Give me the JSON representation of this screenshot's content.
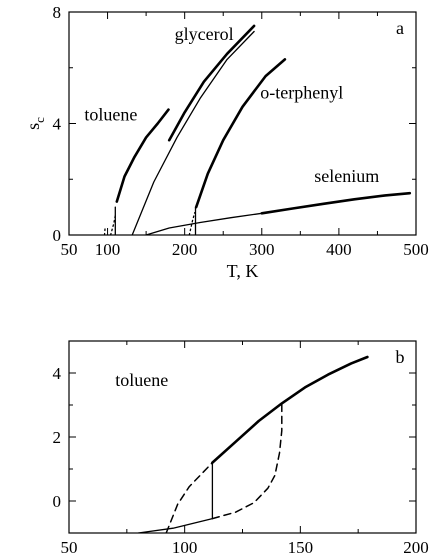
{
  "chart_data": [
    {
      "type": "line",
      "panel_tag": "a",
      "xlabel": "T, K",
      "ylabel": "s",
      "ylabel_sub": "c",
      "xlim": [
        50,
        500
      ],
      "ylim": [
        0,
        8
      ],
      "xticks": [
        50,
        100,
        150,
        200,
        250,
        300,
        350,
        400,
        450,
        500
      ],
      "yticks": [
        0,
        2,
        4,
        6,
        8
      ],
      "xtick_labels": [
        "50",
        "100",
        "200",
        "300",
        "400",
        "500"
      ],
      "ytick_labels": [
        "0",
        "4",
        "8"
      ],
      "xtick_label_values": [
        50,
        100,
        200,
        300,
        400,
        500
      ],
      "ytick_label_values": [
        0,
        4,
        8
      ],
      "grid": false,
      "series": [
        {
          "label_ref": "toluene",
          "style": "thick",
          "points": [
            [
              112,
              1.2
            ],
            [
              122,
              2.1
            ],
            [
              135,
              2.8
            ],
            [
              150,
              3.5
            ],
            [
              165,
              4.0
            ],
            [
              179,
              4.5
            ]
          ]
        },
        {
          "label_ref": "toluene",
          "style": "thin",
          "points": [
            [
              110,
              0.0
            ],
            [
              110,
              1.0
            ]
          ]
        },
        {
          "label_ref": "toluene",
          "style": "dotted",
          "points": [
            [
              104,
              0.0
            ],
            [
              108,
              0.4
            ],
            [
              110,
              0.7
            ]
          ]
        },
        {
          "label_ref": "toluene",
          "style": "dotted",
          "points": [
            [
              96,
              0.0
            ],
            [
              97,
              0.3
            ]
          ]
        },
        {
          "label_ref": "glycerol",
          "style": "thin",
          "points": [
            [
              132,
              0.0
            ],
            [
              160,
              1.9
            ],
            [
              190,
              3.5
            ],
            [
              220,
              4.9
            ],
            [
              255,
              6.3
            ],
            [
              290,
              7.3
            ]
          ]
        },
        {
          "label_ref": "glycerol",
          "style": "thick",
          "points": [
            [
              180,
              3.4
            ],
            [
              200,
              4.4
            ],
            [
              225,
              5.5
            ],
            [
              255,
              6.5
            ],
            [
              290,
              7.5
            ]
          ]
        },
        {
          "label_ref": "o-terphenyl",
          "style": "thick",
          "points": [
            [
              215,
              1.0
            ],
            [
              230,
              2.2
            ],
            [
              250,
              3.4
            ],
            [
              275,
              4.6
            ],
            [
              305,
              5.7
            ],
            [
              330,
              6.3
            ]
          ]
        },
        {
          "label_ref": "o-terphenyl",
          "style": "thin",
          "points": [
            [
              214,
              0.0
            ],
            [
              214,
              1.0
            ]
          ]
        },
        {
          "label_ref": "o-terphenyl",
          "style": "dotted",
          "points": [
            [
              206,
              0.0
            ],
            [
              210,
              0.5
            ],
            [
              213,
              0.8
            ]
          ]
        },
        {
          "label_ref": "selenium",
          "style": "thin",
          "points": [
            [
              150,
              0.0
            ],
            [
              180,
              0.25
            ],
            [
              220,
              0.45
            ],
            [
              260,
              0.62
            ],
            [
              300,
              0.78
            ]
          ]
        },
        {
          "label_ref": "selenium",
          "style": "thick",
          "points": [
            [
              300,
              0.78
            ],
            [
              340,
              0.95
            ],
            [
              380,
              1.12
            ],
            [
              420,
              1.28
            ],
            [
              460,
              1.42
            ],
            [
              492,
              1.5
            ]
          ]
        }
      ],
      "curve_labels": [
        {
          "text": "toluene",
          "x": 70,
          "y": 4.1
        },
        {
          "text": "glycerol",
          "x": 187,
          "y": 7.0
        },
        {
          "text": "o-terphenyl",
          "x": 298,
          "y": 4.9
        },
        {
          "text": "selenium",
          "x": 368,
          "y": 1.9
        }
      ]
    },
    {
      "type": "line",
      "panel_tag": "b",
      "xlabel": "",
      "ylabel": "",
      "xlim": [
        50,
        200
      ],
      "ylim": [
        -1,
        5
      ],
      "xticks": [
        50,
        75,
        100,
        125,
        150,
        175,
        200
      ],
      "yticks": [
        0,
        1,
        2,
        3,
        4
      ],
      "xtick_labels": [
        "50",
        "100",
        "150",
        "200"
      ],
      "ytick_labels": [
        "0",
        "2",
        "4"
      ],
      "xtick_label_values": [
        50,
        100,
        150,
        200
      ],
      "ytick_label_values": [
        0,
        2,
        4
      ],
      "grid": false,
      "series": [
        {
          "style": "thick",
          "points": [
            [
              112,
              1.2
            ],
            [
              122,
              1.85
            ],
            [
              132,
              2.5
            ],
            [
              142,
              3.05
            ],
            [
              152,
              3.55
            ],
            [
              162,
              3.95
            ],
            [
              172,
              4.3
            ],
            [
              179,
              4.5
            ]
          ]
        },
        {
          "style": "thin",
          "points": [
            [
              80,
              -1.0
            ],
            [
              95,
              -0.85
            ],
            [
              112,
              -0.55
            ]
          ]
        },
        {
          "style": "thin",
          "points": [
            [
              112,
              -0.55
            ],
            [
              112,
              1.2
            ]
          ]
        },
        {
          "style": "dashed",
          "points": [
            [
              92,
              -1.0
            ],
            [
              97,
              -0.1
            ],
            [
              102,
              0.45
            ],
            [
              108,
              0.9
            ],
            [
              112,
              1.2
            ]
          ]
        },
        {
          "style": "dashed",
          "points": [
            [
              112,
              -0.55
            ],
            [
              122,
              -0.35
            ],
            [
              130,
              -0.05
            ],
            [
              136,
              0.4
            ],
            [
              139,
              0.8
            ],
            [
              141,
              1.5
            ],
            [
              142,
              2.2
            ],
            [
              142,
              3.05
            ]
          ]
        }
      ],
      "curve_labels": [
        {
          "text": "toluene",
          "x": 70,
          "y": 3.6
        }
      ]
    }
  ]
}
